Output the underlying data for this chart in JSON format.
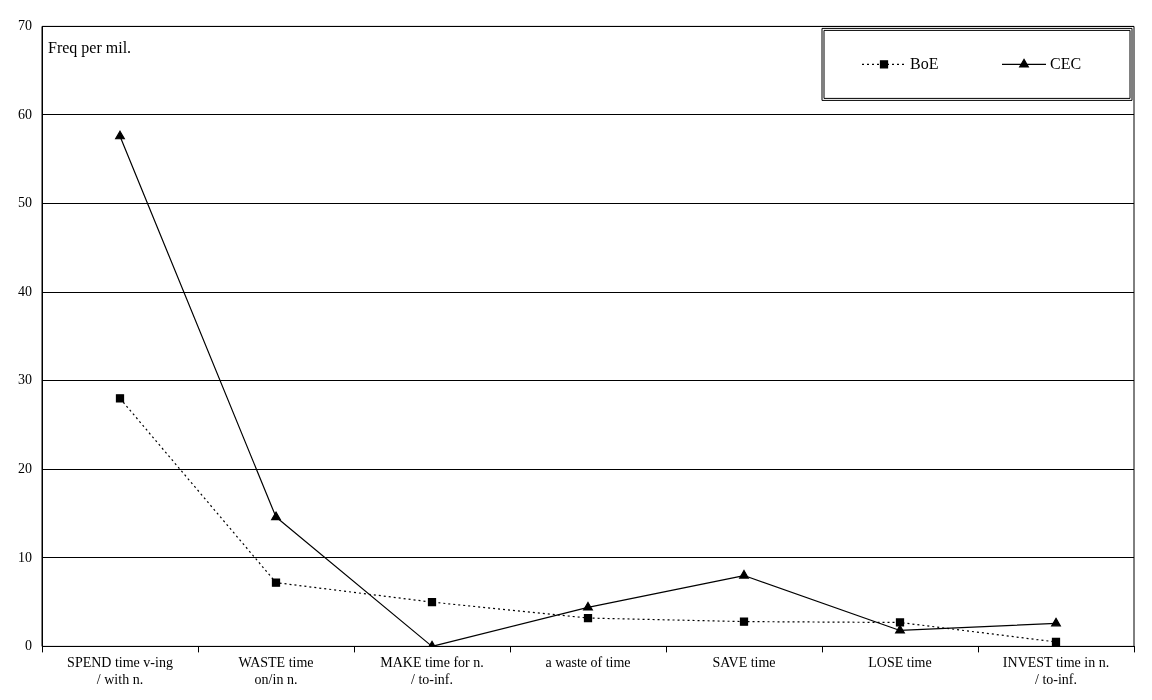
{
  "chart_data": {
    "type": "line",
    "ylabel": "Freq per mil.",
    "categories": [
      "SPEND time v-ing\n/ with n.",
      "WASTE time\non/in n.",
      "MAKE time for n.\n/ to-inf.",
      "a waste of time",
      "SAVE time",
      "LOSE time",
      "INVEST time in n.\n/ to-inf."
    ],
    "series": [
      {
        "name": "BoE",
        "color": "#000000",
        "marker": "square",
        "line_style": "dotted",
        "values": [
          28,
          7.2,
          5,
          3.2,
          2.8,
          2.7,
          0.5
        ]
      },
      {
        "name": "CEC",
        "color": "#000000",
        "marker": "triangle",
        "line_style": "solid",
        "values": [
          57.6,
          14.6,
          0,
          4.4,
          8,
          1.8,
          2.6
        ]
      }
    ],
    "ylim": [
      0,
      70
    ],
    "yticks": [
      0,
      10,
      20,
      30,
      40,
      50,
      60,
      70
    ],
    "grid": "y",
    "legend": "top right"
  }
}
